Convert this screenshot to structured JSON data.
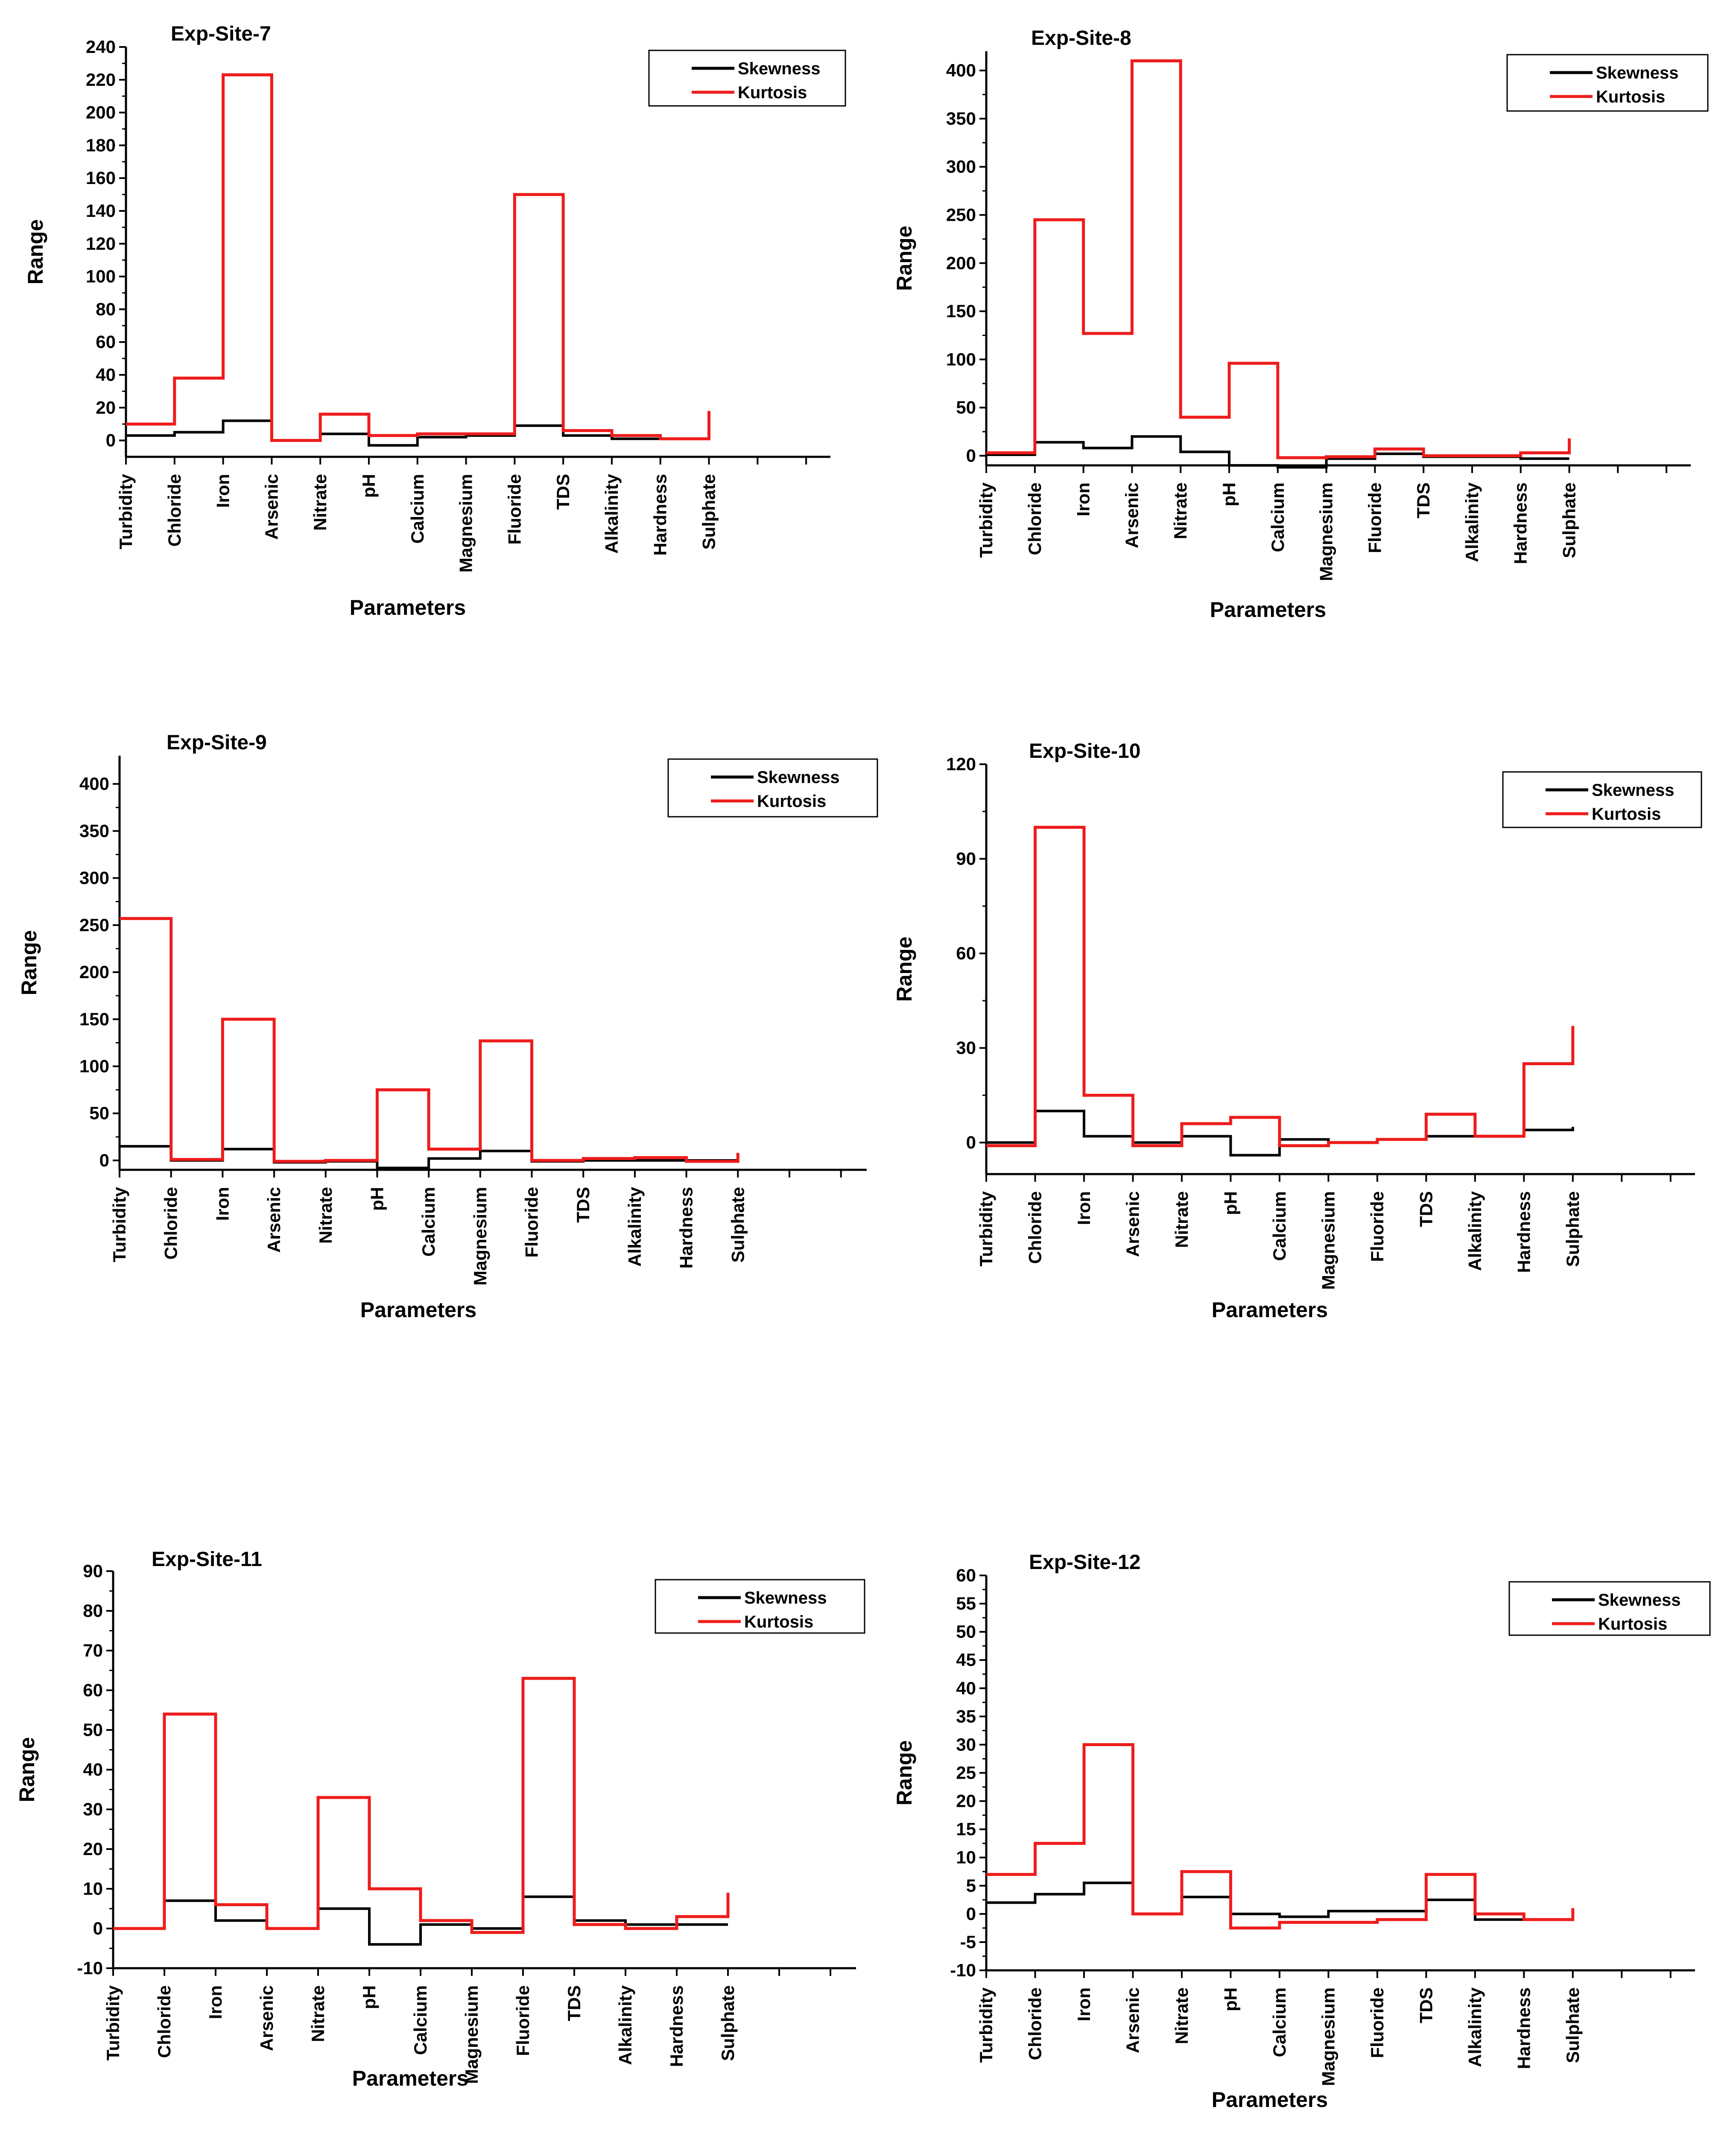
{
  "figure": {
    "xlabel": "Parameters",
    "ylabel": "Range",
    "legend": [
      "Skewness",
      "Kurtosis"
    ],
    "colors": {
      "Skewness": "#000000",
      "Kurtosis": "#ee1c1c"
    }
  },
  "chart_data": [
    {
      "type": "line",
      "step": true,
      "title": "Exp-Site-7",
      "xlabel": "Parameters",
      "ylabel": "Range",
      "categories": [
        "Turbidity",
        "Chloride",
        "Iron",
        "Arsenic",
        "Nitrate",
        "pH",
        "Calcium",
        "Magnesium",
        "Fluoride",
        "TDS",
        "Alkalinity",
        "Hardness",
        "Sulphate"
      ],
      "ylim": [
        -10,
        240
      ],
      "yticks": [
        0,
        20,
        40,
        60,
        80,
        100,
        120,
        140,
        160,
        180,
        200,
        220,
        240
      ],
      "legend_position": "top-right",
      "series": [
        {
          "name": "Skewness",
          "values": [
            3,
            5,
            12,
            0,
            4,
            -3,
            2,
            3,
            9,
            3,
            1,
            1,
            1
          ]
        },
        {
          "name": "Kurtosis",
          "values": [
            10,
            38,
            223,
            0,
            16,
            3,
            4,
            4,
            150,
            6,
            3,
            1,
            18
          ]
        }
      ]
    },
    {
      "type": "line",
      "step": true,
      "title": "Exp-Site-8",
      "xlabel": "Parameters",
      "ylabel": "Range",
      "categories": [
        "Turbidity",
        "Chloride",
        "Iron",
        "Arsenic",
        "Nitrate",
        "pH",
        "Calcium",
        "Magnesium",
        "Fluoride",
        "TDS",
        "Alkalinity",
        "Hardness",
        "Sulphate"
      ],
      "ylim": [
        -10,
        420
      ],
      "yticks": [
        0,
        50,
        100,
        150,
        200,
        250,
        300,
        350,
        400
      ],
      "legend_position": "top-right",
      "series": [
        {
          "name": "Skewness",
          "values": [
            1,
            14,
            8,
            20,
            4,
            -10,
            -12,
            -3,
            2,
            -1,
            -1,
            -3,
            -3
          ]
        },
        {
          "name": "Kurtosis",
          "values": [
            3,
            245,
            127,
            410,
            40,
            96,
            -2,
            -1,
            7,
            0,
            0,
            3,
            18
          ]
        }
      ]
    },
    {
      "type": "line",
      "step": true,
      "title": "Exp-Site-9",
      "xlabel": "Parameters",
      "ylabel": "Range",
      "categories": [
        "Turbidity",
        "Chloride",
        "Iron",
        "Arsenic",
        "Nitrate",
        "pH",
        "Calcium",
        "Magnesium",
        "Fluoride",
        "TDS",
        "Alkalinity",
        "Hardness",
        "Sulphate"
      ],
      "ylim": [
        -10,
        430
      ],
      "yticks": [
        0,
        50,
        100,
        150,
        200,
        250,
        300,
        350,
        400
      ],
      "legend_position": "top-right",
      "series": [
        {
          "name": "Skewness",
          "values": [
            15,
            0,
            12,
            -2,
            -1,
            -8,
            2,
            10,
            -1,
            0,
            0,
            0,
            2
          ]
        },
        {
          "name": "Kurtosis",
          "values": [
            257,
            1,
            150,
            -1,
            0,
            75,
            12,
            127,
            0,
            2,
            3,
            -1,
            8
          ]
        }
      ]
    },
    {
      "type": "line",
      "step": true,
      "title": "Exp-Site-10",
      "xlabel": "Parameters",
      "ylabel": "Range",
      "categories": [
        "Turbidity",
        "Chloride",
        "Iron",
        "Arsenic",
        "Nitrate",
        "pH",
        "Calcium",
        "Magnesium",
        "Fluoride",
        "TDS",
        "Alkalinity",
        "Hardness",
        "Sulphate"
      ],
      "ylim": [
        -10,
        120
      ],
      "yticks": [
        0,
        30,
        60,
        90,
        120
      ],
      "legend_position": "top-right",
      "series": [
        {
          "name": "Skewness",
          "values": [
            0,
            10,
            2,
            0,
            2,
            -4,
            1,
            0,
            1,
            2,
            2,
            4,
            5
          ]
        },
        {
          "name": "Kurtosis",
          "values": [
            -1,
            100,
            15,
            -1,
            6,
            8,
            -1,
            0,
            1,
            9,
            2,
            25,
            37
          ]
        }
      ]
    },
    {
      "type": "line",
      "step": true,
      "title": "Exp-Site-11",
      "xlabel": "Parameters",
      "ylabel": "Range",
      "categories": [
        "Turbidity",
        "Chloride",
        "Iron",
        "Arsenic",
        "Nitrate",
        "pH",
        "Calcium",
        "Magnesium",
        "Fluoride",
        "TDS",
        "Alkalinity",
        "Hardness",
        "Sulphate"
      ],
      "ylim": [
        -10,
        90
      ],
      "yticks": [
        -10,
        0,
        10,
        20,
        30,
        40,
        50,
        60,
        70,
        80,
        90
      ],
      "legend_position": "top-right",
      "series": [
        {
          "name": "Skewness",
          "values": [
            0,
            7,
            2,
            0,
            5,
            -4,
            1,
            0,
            8,
            2,
            1,
            1,
            1
          ]
        },
        {
          "name": "Kurtosis",
          "values": [
            0,
            54,
            6,
            0,
            33,
            10,
            2,
            -1,
            63,
            1,
            0,
            3,
            9
          ]
        }
      ]
    },
    {
      "type": "line",
      "step": true,
      "title": "Exp-Site-12",
      "xlabel": "Parameters",
      "ylabel": "Range",
      "categories": [
        "Turbidity",
        "Chloride",
        "Iron",
        "Arsenic",
        "Nitrate",
        "pH",
        "Calcium",
        "Magnesium",
        "Fluoride",
        "TDS",
        "Alkalinity",
        "Hardness",
        "Sulphate"
      ],
      "ylim": [
        -10,
        60
      ],
      "yticks": [
        -10,
        -5,
        0,
        5,
        10,
        15,
        20,
        25,
        30,
        35,
        40,
        45,
        50,
        55,
        60
      ],
      "legend_position": "top-right",
      "series": [
        {
          "name": "Skewness",
          "values": [
            2,
            3.5,
            5.5,
            0,
            3,
            0,
            -0.5,
            0.5,
            0.5,
            2.5,
            -1,
            -1,
            1
          ]
        },
        {
          "name": "Kurtosis",
          "values": [
            7,
            12.5,
            30,
            0,
            7.5,
            -2.5,
            -1.5,
            -1.5,
            -1,
            7,
            0,
            -1,
            1
          ]
        }
      ]
    }
  ]
}
